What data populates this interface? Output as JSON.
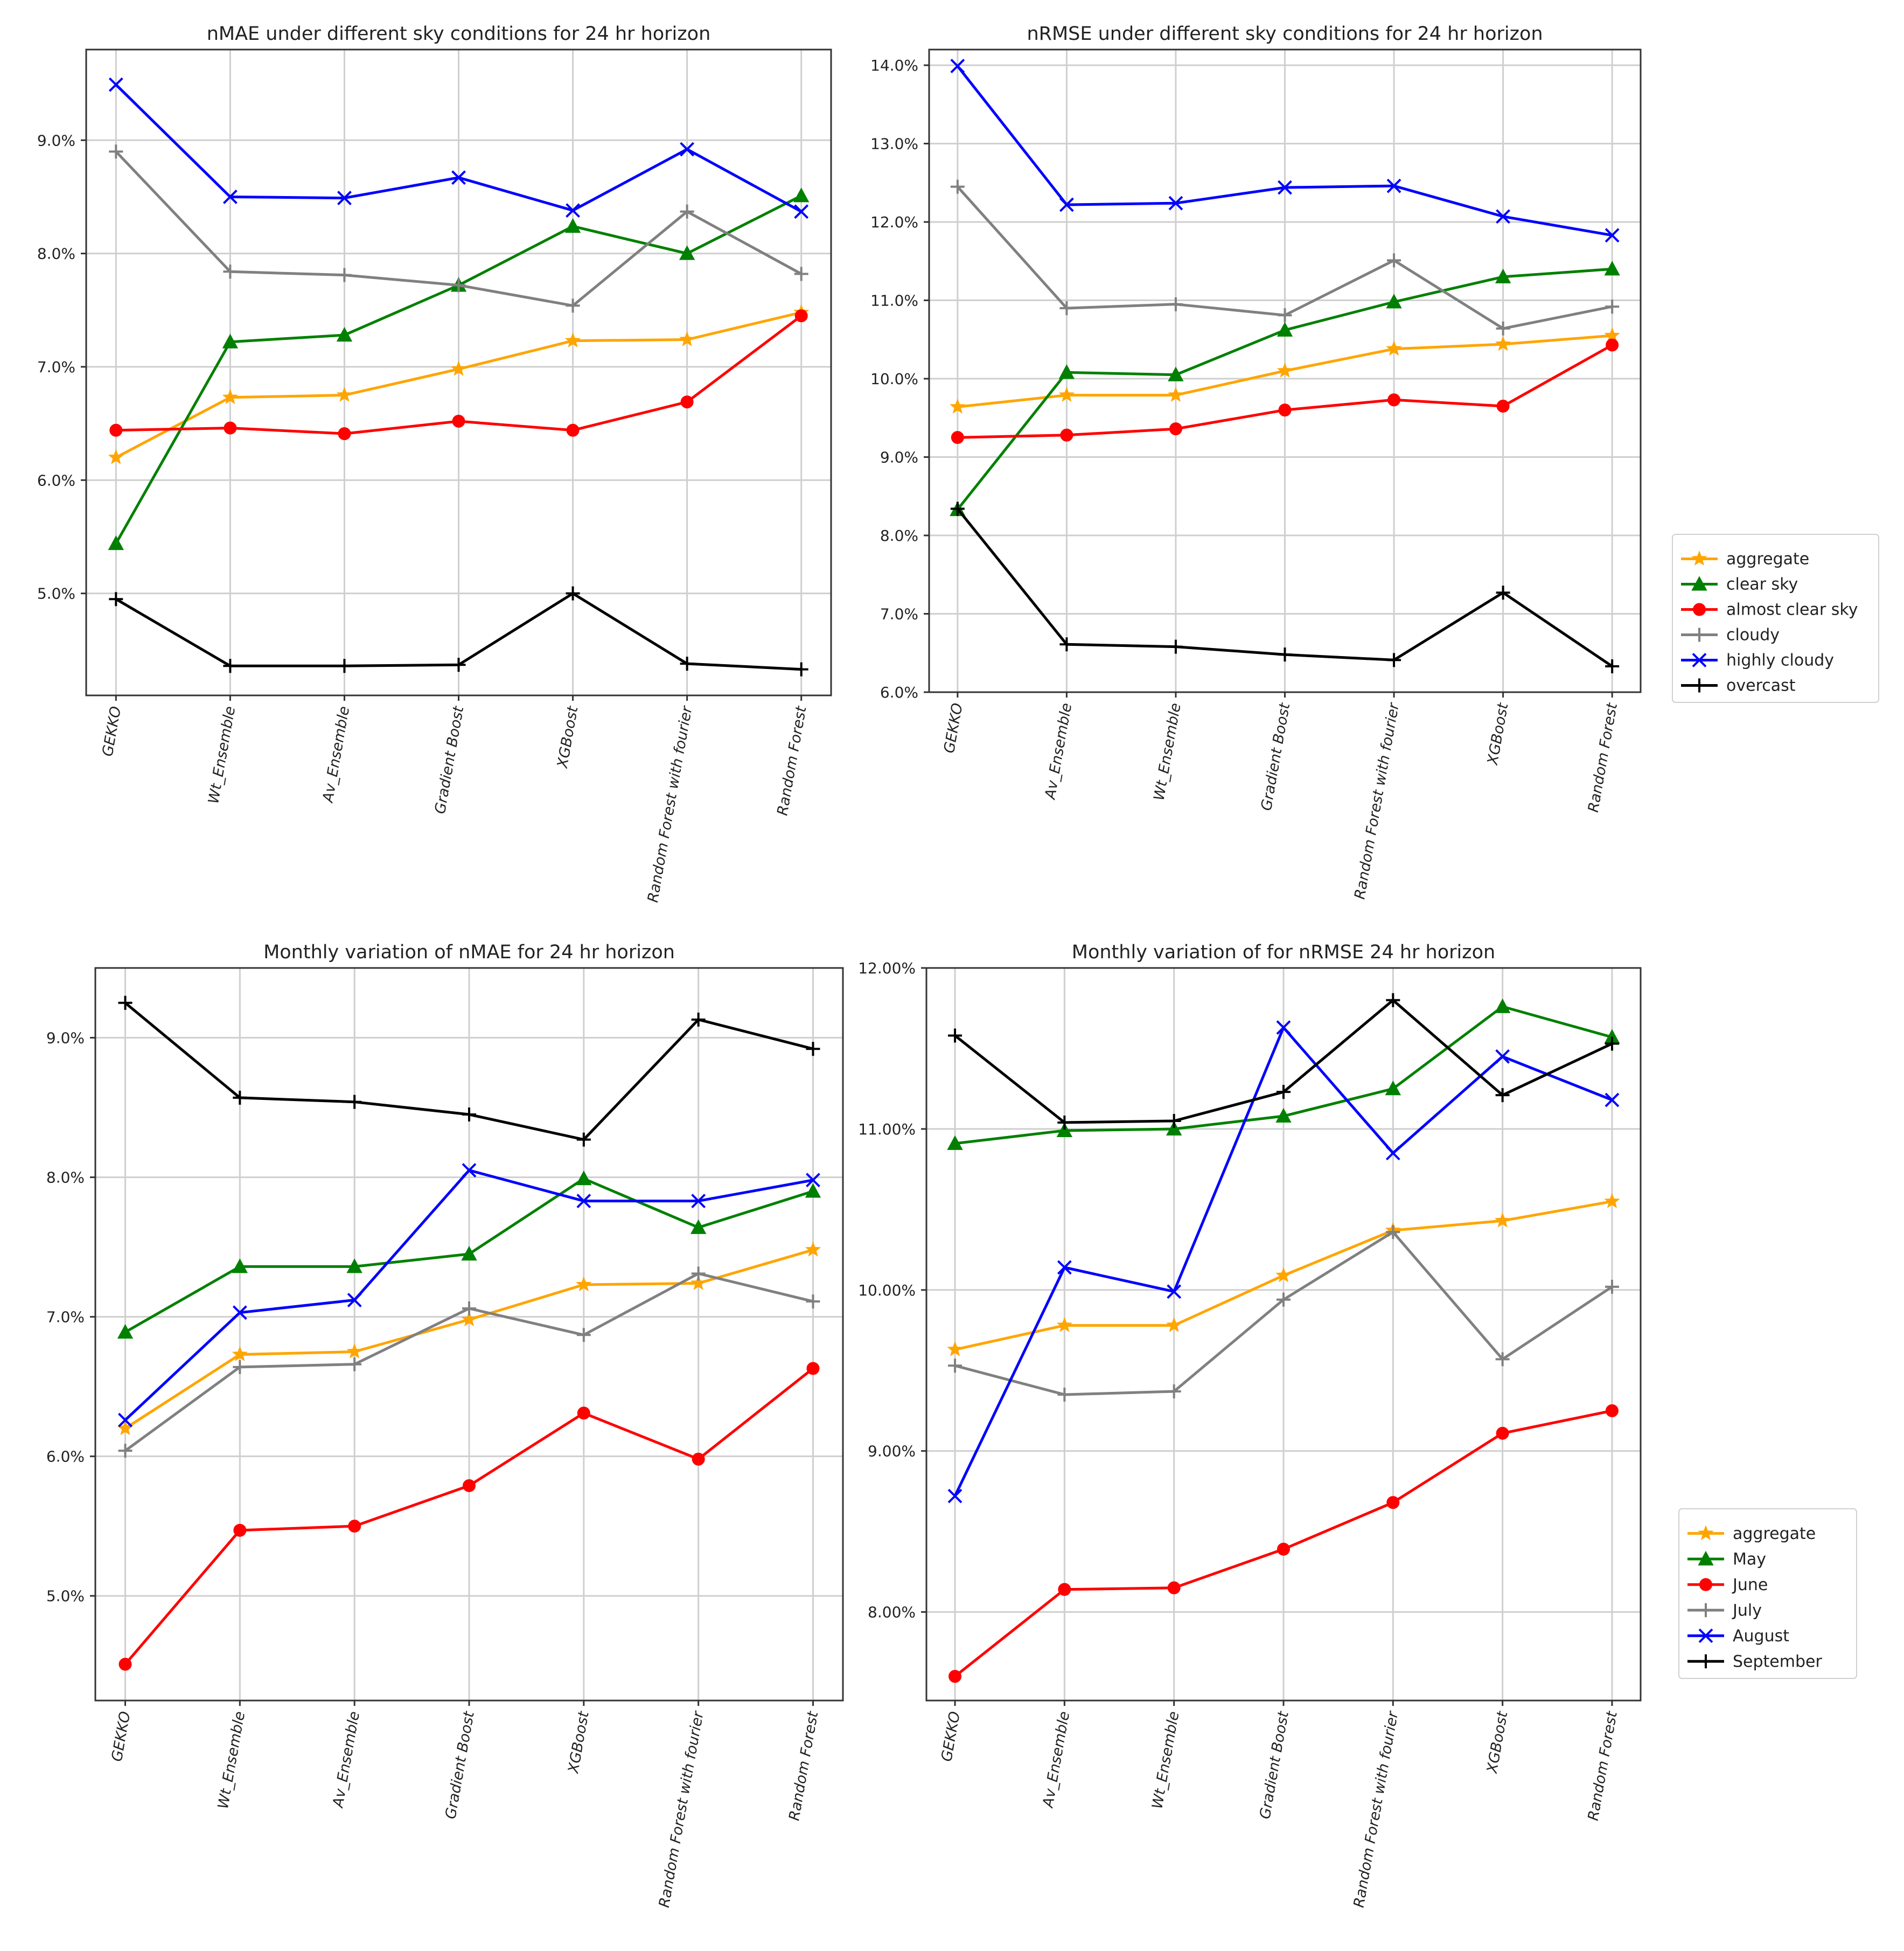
{
  "marker_legend": {
    "star": "star-icon",
    "triangle": "triangle-icon",
    "circle": "circle-icon",
    "plus": "plus-icon",
    "cross": "cross-icon"
  },
  "chart_data": [
    {
      "id": "chart1",
      "type": "line",
      "title": "nMAE under different sky conditions for 24 hr horizon",
      "xlabel": "",
      "ylabel": "",
      "categories": [
        "GEKKO",
        "Wt_Ensemble",
        "Av_Ensemble",
        "Gradient Boost",
        "XGBoost",
        "Random Forest with fourier",
        "Random Forest"
      ],
      "ylim": [
        4.1,
        9.8
      ],
      "yticks": [
        5.0,
        6.0,
        7.0,
        8.0,
        9.0
      ],
      "ytick_labels": [
        "5.0%",
        "6.0%",
        "7.0%",
        "8.0%",
        "9.0%"
      ],
      "grid": true,
      "series": [
        {
          "name": "aggregate",
          "color": "#ffa500",
          "marker": "star",
          "values": [
            6.2,
            6.73,
            6.75,
            6.98,
            7.23,
            7.24,
            7.48
          ]
        },
        {
          "name": "clear sky",
          "color": "#008000",
          "marker": "triangle",
          "values": [
            5.44,
            7.22,
            7.28,
            7.72,
            8.24,
            8.0,
            8.51
          ]
        },
        {
          "name": "almost clear sky",
          "color": "#ff0000",
          "marker": "circle",
          "values": [
            6.44,
            6.46,
            6.41,
            6.52,
            6.44,
            6.69,
            7.45
          ]
        },
        {
          "name": "cloudy",
          "color": "#808080",
          "marker": "plus",
          "values": [
            8.9,
            7.84,
            7.81,
            7.72,
            7.54,
            8.37,
            7.82
          ]
        },
        {
          "name": "highly cloudy",
          "color": "#0000ff",
          "marker": "cross",
          "values": [
            9.49,
            8.5,
            8.49,
            8.67,
            8.38,
            8.92,
            8.37
          ]
        },
        {
          "name": "overcast",
          "color": "#000000",
          "marker": "plus",
          "values": [
            4.95,
            4.36,
            4.36,
            4.37,
            5.0,
            4.38,
            4.33
          ]
        }
      ]
    },
    {
      "id": "chart2",
      "type": "line",
      "title": "nRMSE under different sky conditions for 24 hr horizon",
      "xlabel": "",
      "ylabel": "",
      "categories": [
        "GEKKO",
        "Av_Ensemble",
        "Wt_Ensemble",
        "Gradient Boost",
        "Random Forest with fourier",
        "XGBoost",
        "Random Forest"
      ],
      "ylim": [
        6.0,
        14.2
      ],
      "yticks": [
        6.0,
        7.0,
        8.0,
        9.0,
        10.0,
        11.0,
        12.0,
        13.0,
        14.0
      ],
      "ytick_labels": [
        "6.0%",
        "7.0%",
        "8.0%",
        "9.0%",
        "10.0%",
        "11.0%",
        "12.0%",
        "13.0%",
        "14.0%"
      ],
      "grid": true,
      "legend": "right",
      "series": [
        {
          "name": "aggregate",
          "color": "#ffa500",
          "marker": "star",
          "values": [
            9.64,
            9.79,
            9.79,
            10.1,
            10.38,
            10.44,
            10.55
          ]
        },
        {
          "name": "clear sky",
          "color": "#008000",
          "marker": "triangle",
          "values": [
            8.33,
            10.08,
            10.05,
            10.62,
            10.98,
            11.3,
            11.4
          ]
        },
        {
          "name": "almost clear sky",
          "color": "#ff0000",
          "marker": "circle",
          "values": [
            9.25,
            9.28,
            9.36,
            9.6,
            9.73,
            9.65,
            10.43
          ]
        },
        {
          "name": "cloudy",
          "color": "#808080",
          "marker": "plus",
          "values": [
            12.45,
            10.9,
            10.95,
            10.81,
            11.51,
            10.64,
            10.92
          ]
        },
        {
          "name": "highly cloudy",
          "color": "#0000ff",
          "marker": "cross",
          "values": [
            13.99,
            12.22,
            12.24,
            12.44,
            12.46,
            12.07,
            11.83
          ]
        },
        {
          "name": "overcast",
          "color": "#000000",
          "marker": "plus",
          "values": [
            8.34,
            6.61,
            6.58,
            6.48,
            6.41,
            7.27,
            6.33
          ]
        }
      ]
    },
    {
      "id": "chart3",
      "type": "line",
      "title": "Monthly variation of nMAE for 24 hr horizon",
      "xlabel": "",
      "ylabel": "",
      "categories": [
        "GEKKO",
        "Wt_Ensemble",
        "Av_Ensemble",
        "Gradient Boost",
        "XGBoost",
        "Random Forest with fourier",
        "Random Forest"
      ],
      "ylim": [
        4.25,
        9.5
      ],
      "yticks": [
        5.0,
        6.0,
        7.0,
        8.0,
        9.0
      ],
      "ytick_labels": [
        "5.0%",
        "6.0%",
        "7.0%",
        "8.0%",
        "9.0%"
      ],
      "grid": true,
      "series": [
        {
          "name": "aggregate",
          "color": "#ffa500",
          "marker": "star",
          "values": [
            6.2,
            6.73,
            6.75,
            6.98,
            7.23,
            7.24,
            7.48
          ]
        },
        {
          "name": "May",
          "color": "#008000",
          "marker": "triangle",
          "values": [
            6.89,
            7.36,
            7.36,
            7.45,
            7.99,
            7.64,
            7.9
          ]
        },
        {
          "name": "June",
          "color": "#ff0000",
          "marker": "circle",
          "values": [
            4.51,
            5.47,
            5.5,
            5.79,
            6.31,
            5.98,
            6.63
          ]
        },
        {
          "name": "July",
          "color": "#808080",
          "marker": "plus",
          "values": [
            6.04,
            6.64,
            6.66,
            7.06,
            6.87,
            7.31,
            7.11
          ]
        },
        {
          "name": "August",
          "color": "#0000ff",
          "marker": "cross",
          "values": [
            6.26,
            7.03,
            7.12,
            8.05,
            7.83,
            7.83,
            7.98
          ]
        },
        {
          "name": "September",
          "color": "#000000",
          "marker": "plus",
          "values": [
            9.25,
            8.57,
            8.54,
            8.45,
            8.27,
            9.13,
            8.92
          ]
        }
      ]
    },
    {
      "id": "chart4",
      "type": "line",
      "title": "Monthly variation of for nRMSE 24 hr horizon",
      "xlabel": "",
      "ylabel": "",
      "categories": [
        "GEKKO",
        "Av_Ensemble",
        "Wt_Ensemble",
        "Gradient Boost",
        "Random Forest with fourier",
        "XGBoost",
        "Random Forest"
      ],
      "ylim": [
        7.45,
        12.0
      ],
      "yticks": [
        8.0,
        9.0,
        10.0,
        11.0,
        12.0
      ],
      "ytick_labels": [
        "8.00%",
        "9.00%",
        "10.00%",
        "11.00%",
        "12.00%"
      ],
      "grid": true,
      "legend": "right",
      "series": [
        {
          "name": "aggregate",
          "color": "#ffa500",
          "marker": "star",
          "values": [
            9.63,
            9.78,
            9.78,
            10.09,
            10.37,
            10.43,
            10.55
          ]
        },
        {
          "name": "May",
          "color": "#008000",
          "marker": "triangle",
          "values": [
            10.91,
            10.99,
            11.0,
            11.08,
            11.25,
            11.76,
            11.57
          ]
        },
        {
          "name": "June",
          "color": "#ff0000",
          "marker": "circle",
          "values": [
            7.6,
            8.14,
            8.15,
            8.39,
            8.68,
            9.11,
            9.25
          ]
        },
        {
          "name": "July",
          "color": "#808080",
          "marker": "plus",
          "values": [
            9.53,
            9.35,
            9.37,
            9.94,
            10.36,
            9.57,
            10.02
          ]
        },
        {
          "name": "August",
          "color": "#0000ff",
          "marker": "cross",
          "values": [
            8.72,
            10.14,
            9.99,
            11.63,
            10.85,
            11.45,
            11.18
          ]
        },
        {
          "name": "September",
          "color": "#000000",
          "marker": "plus",
          "values": [
            11.58,
            11.04,
            11.05,
            11.23,
            11.8,
            11.21,
            11.53
          ]
        }
      ]
    }
  ]
}
